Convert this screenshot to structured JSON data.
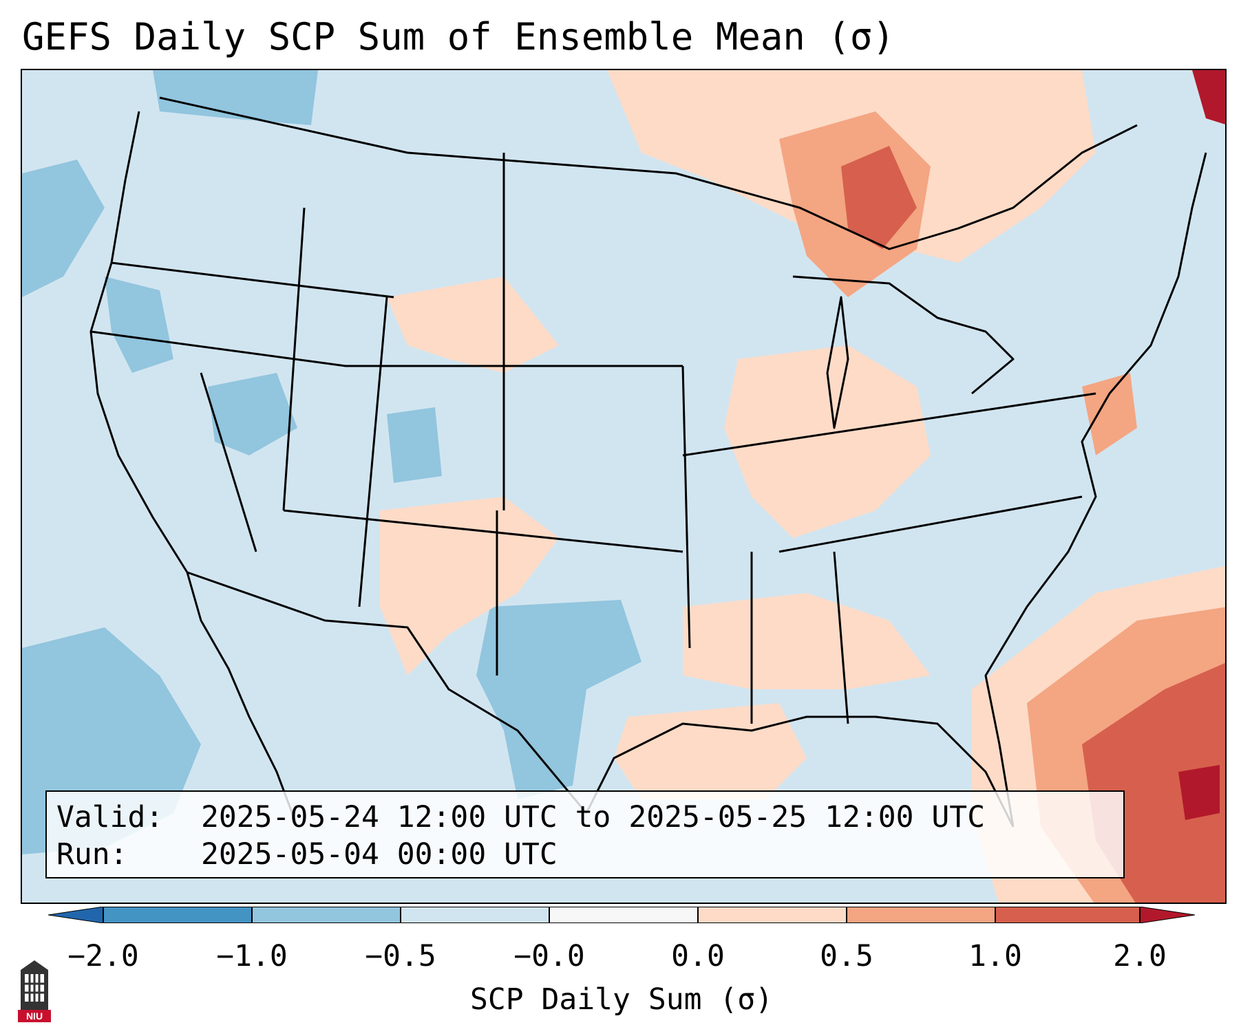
{
  "title": "GEFS Daily SCP Sum of Ensemble Mean (σ)",
  "info": {
    "valid_label": "Valid:",
    "valid_value": "2025-05-24 12:00 UTC to 2025-05-25 12:00 UTC",
    "run_label": "Run:",
    "run_value": "2025-05-04 00:00 UTC"
  },
  "colorbar": {
    "ticks": [
      "−2.0",
      "−1.0",
      "−0.5",
      "−0.0",
      "0.0",
      "0.5",
      "1.0",
      "2.0"
    ],
    "bins": [
      {
        "range": "-2.0 to -1.0",
        "color": "#4393c3"
      },
      {
        "range": "-1.0 to -0.5",
        "color": "#92c5de"
      },
      {
        "range": "-0.5 to -0.0",
        "color": "#d1e5f0"
      },
      {
        "range": "-0.0 to 0.0",
        "color": "#f7f7f7"
      },
      {
        "range": "0.0 to 0.5",
        "color": "#fddbc7"
      },
      {
        "range": "0.5 to 1.0",
        "color": "#f4a582"
      },
      {
        "range": "1.0 to 2.0",
        "color": "#d6604d"
      }
    ],
    "under_color": "#2166ac",
    "over_color": "#b2182b",
    "label": "SCP Daily Sum (σ)"
  },
  "logo": {
    "text": "NIU",
    "icon": "niu-logo-icon"
  }
}
